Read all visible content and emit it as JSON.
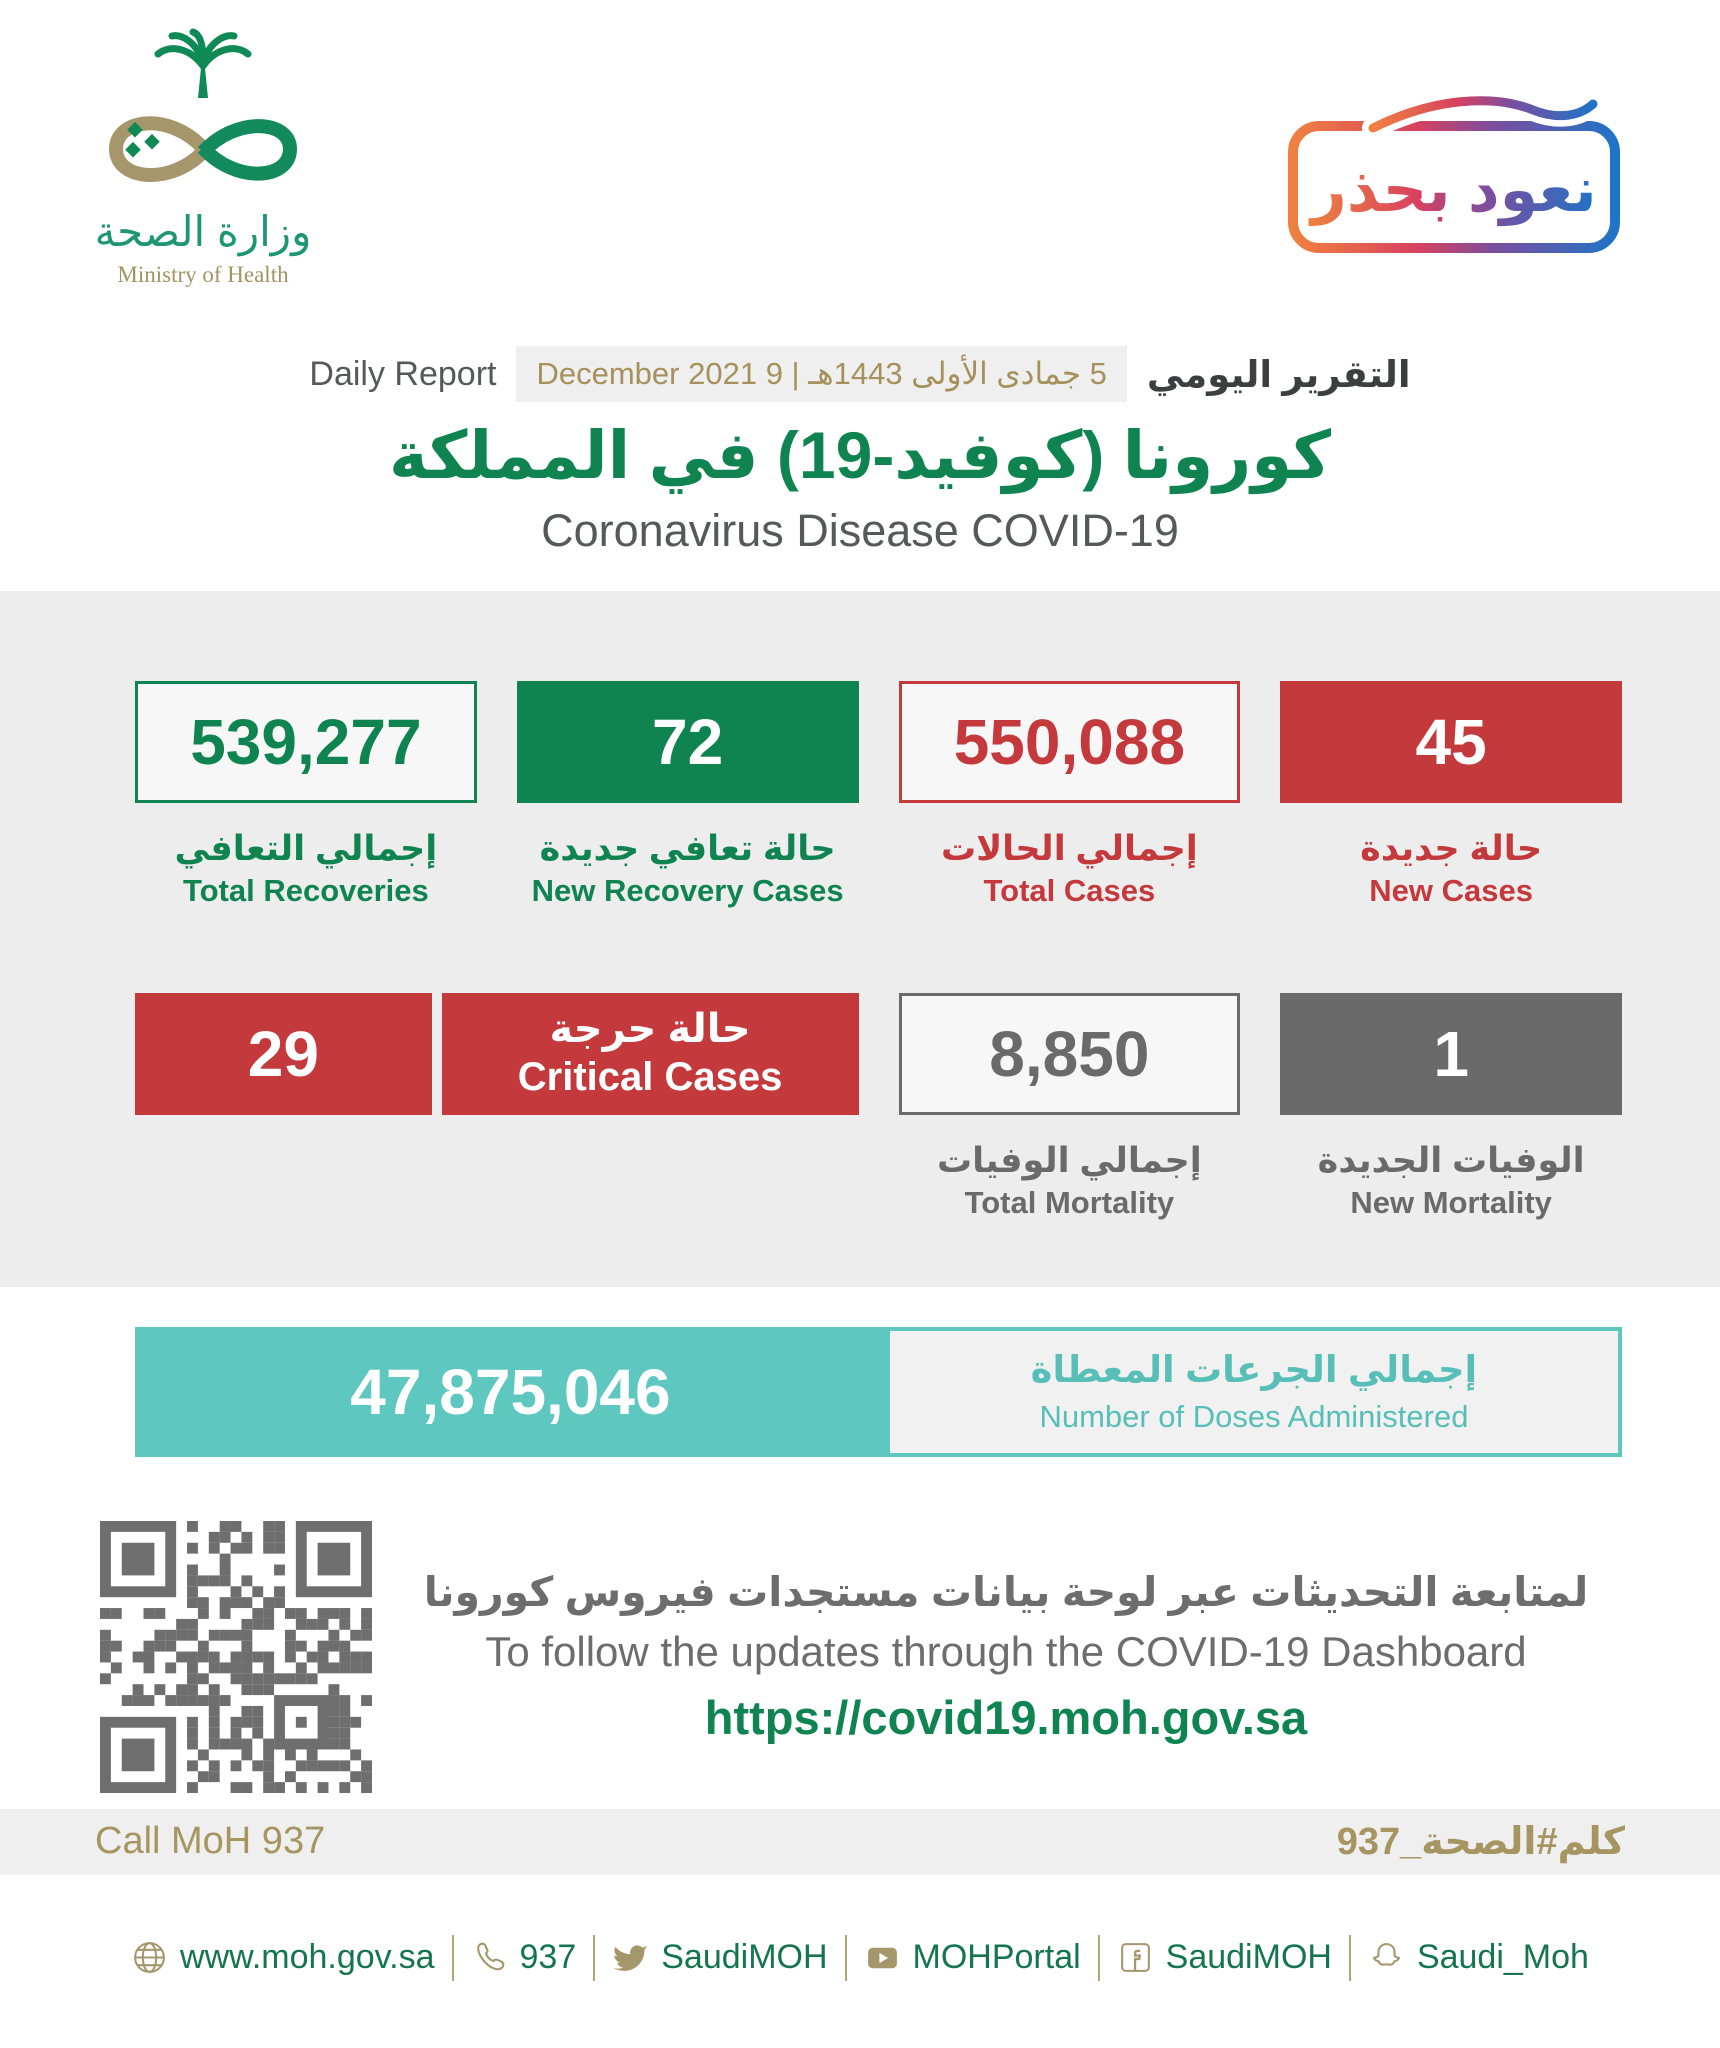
{
  "header": {
    "logo": {
      "arabic": "وزارة الصحة",
      "english": "Ministry of Health"
    },
    "badge": {
      "text": "نعود بحذر"
    }
  },
  "report": {
    "daily_report_en": "Daily Report",
    "date": "5 جمادى الأولى 1443هـ | 9 December 2021",
    "daily_report_ar": "التقرير اليومي",
    "title_ar": "كورونا (كوفيد-19) في المملكة",
    "title_en": "Coronavirus Disease COVID-19"
  },
  "stats": {
    "total_recoveries": {
      "value": "539,277",
      "label_ar": "إجمالي التعافي",
      "label_en": "Total Recoveries"
    },
    "new_recovery_cases": {
      "value": "72",
      "label_ar": "حالة تعافي جديدة",
      "label_en": "New Recovery Cases"
    },
    "total_cases": {
      "value": "550,088",
      "label_ar": "إجمالي الحالات",
      "label_en": "Total Cases"
    },
    "new_cases": {
      "value": "45",
      "label_ar": "حالة جديدة",
      "label_en": "New Cases"
    },
    "critical_cases": {
      "value": "29",
      "label_ar": "حالة حرجة",
      "label_en": "Critical Cases"
    },
    "total_mortality": {
      "value": "8,850",
      "label_ar": "إجمالي الوفيات",
      "label_en": "Total Mortality"
    },
    "new_mortality": {
      "value": "1",
      "label_ar": "الوفيات الجديدة",
      "label_en": "New Mortality"
    },
    "doses": {
      "value": "47,875,046",
      "label_ar": "إجمالي الجرعات المعطاة",
      "label_en": "Number of Doses Administered"
    }
  },
  "dashboard": {
    "text_ar": "لمتابعة التحديثات عبر لوحة بيانات مستجدات فيروس كورونا",
    "text_en": "To follow the updates through the COVID-19 Dashboard",
    "url": "https://covid19.moh.gov.sa"
  },
  "contact": {
    "call_en": "Call MoH 937",
    "call_ar": "كلم#الصحة_937"
  },
  "footer": {
    "items": [
      {
        "icon": "globe-icon",
        "label": "www.moh.gov.sa"
      },
      {
        "icon": "phone-icon",
        "label": "937"
      },
      {
        "icon": "twitter-icon",
        "label": "SaudiMOH"
      },
      {
        "icon": "youtube-icon",
        "label": "MOHPortal"
      },
      {
        "icon": "facebook-icon",
        "label": "SaudiMOH"
      },
      {
        "icon": "snapchat-icon",
        "label": "Saudi_Moh"
      }
    ]
  },
  "colors": {
    "green": "#0f8450",
    "red": "#c4393c",
    "gray": "#6a6a6a",
    "teal": "#5ec7c0",
    "gold": "#a6966b",
    "light_gray": "#efefef"
  }
}
